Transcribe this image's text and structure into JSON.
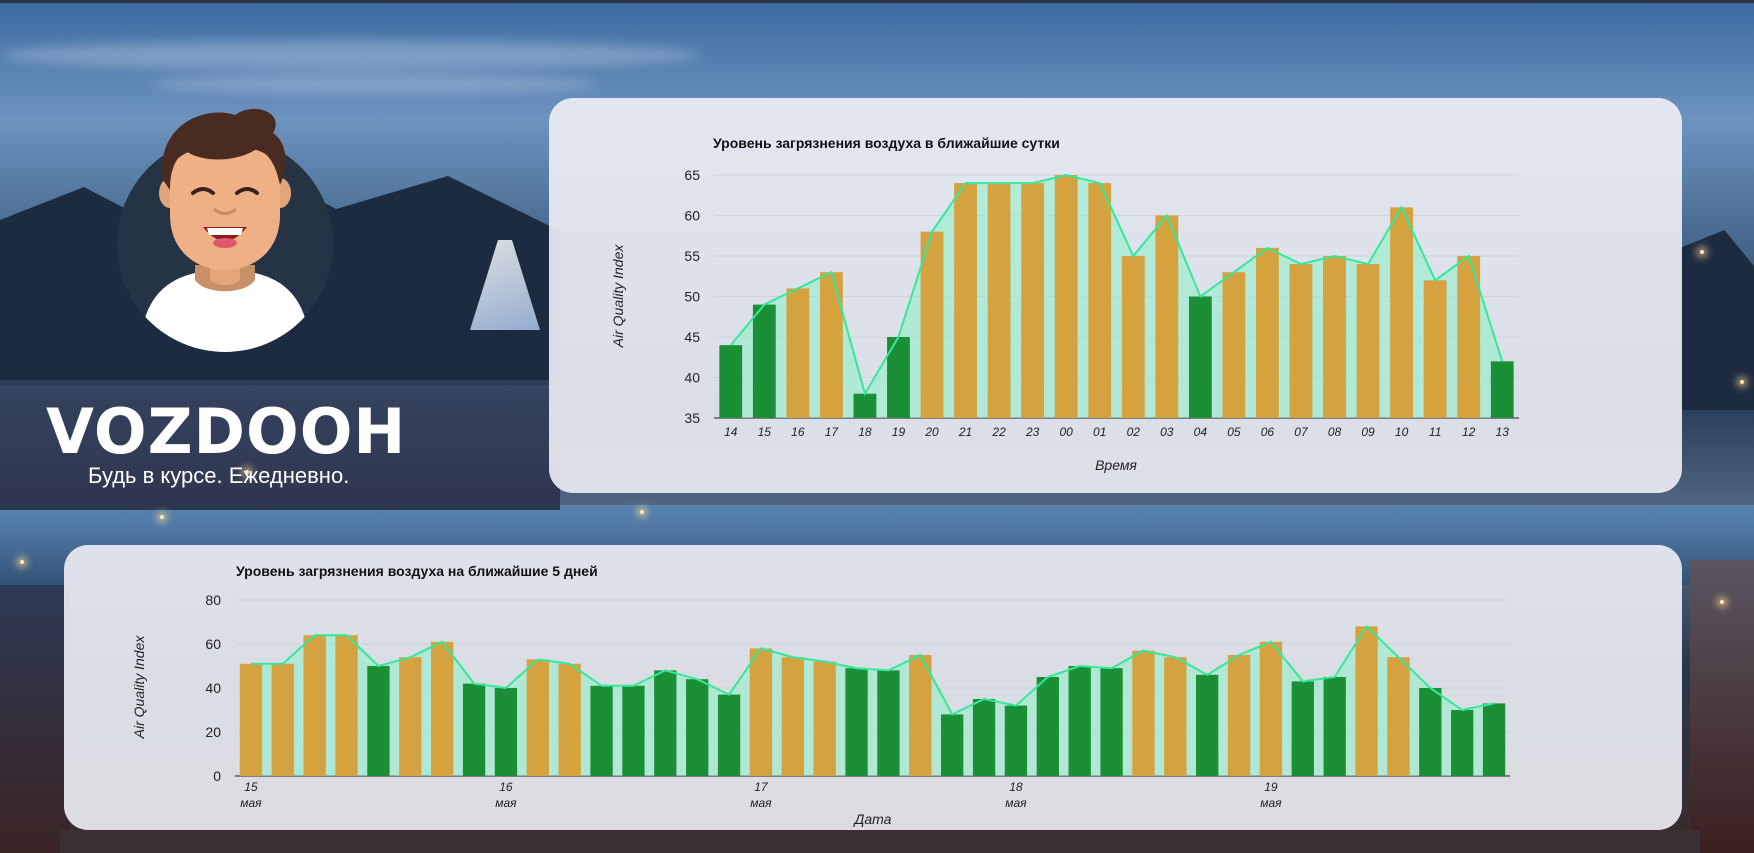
{
  "brand": {
    "name": "VOZDOOH",
    "tagline": "Будь в курсе. Ежедневно."
  },
  "colors": {
    "above_threshold": "#d4a23e",
    "below_threshold": "#1a8f35",
    "trend_line": "#35e89a",
    "trend_fill": "#8ef0c8"
  },
  "icons": {
    "avatar": "smiling-man-avatar"
  },
  "chart_data": [
    {
      "type": "bar",
      "title": "Уровень загрязнения воздуха в ближайшие сутки",
      "xlabel": "Время",
      "ylabel": "Air Quality Index",
      "ylim": [
        35,
        65
      ],
      "yticks": [
        35,
        40,
        45,
        50,
        55,
        60,
        65
      ],
      "grid": true,
      "overlay": "area-line following bar values",
      "categories": [
        "14",
        "15",
        "16",
        "17",
        "18",
        "19",
        "20",
        "21",
        "22",
        "23",
        "00",
        "01",
        "02",
        "03",
        "04",
        "05",
        "06",
        "07",
        "08",
        "09",
        "10",
        "11",
        "12",
        "13"
      ],
      "values": [
        44,
        49,
        51,
        53,
        38,
        45,
        58,
        64,
        64,
        64,
        65,
        64,
        55,
        60,
        50,
        53,
        56,
        54,
        55,
        54,
        61,
        52,
        55,
        42
      ]
    },
    {
      "type": "bar",
      "title": "Уровень загрязнения воздуха на ближайшие 5 дней",
      "xlabel": "Дата",
      "ylabel": "Air Quality Index",
      "ylim": [
        0,
        80
      ],
      "yticks": [
        0,
        20,
        40,
        60,
        80
      ],
      "grid": true,
      "overlay": "area-line following bar values",
      "x_labels": [
        {
          "day": "15",
          "month": "мая",
          "index": 0
        },
        {
          "day": "16",
          "month": "мая",
          "index": 8
        },
        {
          "day": "17",
          "month": "мая",
          "index": 16
        },
        {
          "day": "18",
          "month": "мая",
          "index": 24
        },
        {
          "day": "19",
          "month": "мая",
          "index": 32
        }
      ],
      "values": [
        51,
        51,
        64,
        64,
        50,
        54,
        61,
        42,
        40,
        53,
        51,
        41,
        41,
        48,
        44,
        37,
        58,
        54,
        52,
        49,
        48,
        55,
        28,
        35,
        32,
        45,
        50,
        49,
        57,
        54,
        46,
        55,
        61,
        43,
        45,
        68,
        54,
        40,
        30,
        33
      ]
    }
  ]
}
